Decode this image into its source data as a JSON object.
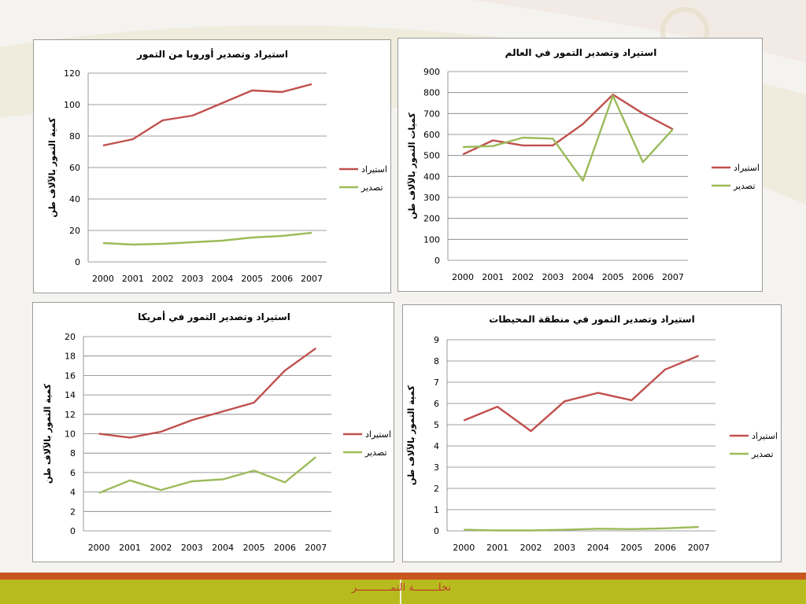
{
  "footer": {
    "text": "نخلــــــــة التمـــــــــــر"
  },
  "colors": {
    "import": "#c0504d",
    "export": "#9bbb59",
    "grid": "#7f7f7f",
    "footer_orange": "#c8561f",
    "footer_green": "#b8bb1e"
  },
  "chart_data": [
    {
      "type": "line",
      "title": "استيراد وتصدير أوروبا من التمور",
      "ylabel": "كمية التمور بالآلاف طن",
      "xlabel": "",
      "categories": [
        "2000",
        "2001",
        "2002",
        "2003",
        "2004",
        "2005",
        "2006",
        "2007"
      ],
      "ylim": [
        0,
        120
      ],
      "ystep": 20,
      "yticks": [
        "0",
        "20",
        "40",
        "60",
        "80",
        "100",
        "120"
      ],
      "grid": true,
      "legend": "right",
      "series": [
        {
          "name": "استيراد",
          "values": [
            74,
            78,
            90,
            93,
            101,
            109,
            108,
            113
          ]
        },
        {
          "name": "تصدير",
          "values": [
            12,
            11,
            11.5,
            12.5,
            13.5,
            15.5,
            16.5,
            18.5
          ]
        }
      ]
    },
    {
      "type": "line",
      "title": "استيراد وتصدير التمور في العالم",
      "ylabel": "كميات التمور بالآلاف طن",
      "xlabel": "",
      "categories": [
        "2000",
        "2001",
        "2002",
        "2003",
        "2004",
        "2005",
        "2006",
        "2007"
      ],
      "ylim": [
        0,
        900
      ],
      "ystep": 100,
      "yticks": [
        "0",
        "100",
        "200",
        "300",
        "400",
        "500",
        "600",
        "700",
        "800",
        "900"
      ],
      "grid": true,
      "legend": "right",
      "series": [
        {
          "name": "استيراد",
          "values": [
            505,
            572,
            548,
            548,
            650,
            790,
            700,
            625
          ]
        },
        {
          "name": "تصدير",
          "values": [
            540,
            545,
            585,
            580,
            380,
            785,
            468,
            625
          ]
        }
      ]
    },
    {
      "type": "line",
      "title": "استيراد وتصدير التمور في أمريكا",
      "ylabel": "كمية التمور بالآلاف طن",
      "xlabel": "",
      "categories": [
        "2000",
        "2001",
        "2002",
        "2003",
        "2004",
        "2005",
        "2006",
        "2007"
      ],
      "ylim": [
        0,
        20
      ],
      "ystep": 2,
      "yticks": [
        "0",
        "2",
        "4",
        "6",
        "8",
        "10",
        "12",
        "14",
        "16",
        "18",
        "20"
      ],
      "grid": true,
      "legend": "right",
      "series": [
        {
          "name": "استيراد",
          "values": [
            10,
            9.6,
            10.2,
            11.4,
            12.3,
            13.2,
            16.5,
            18.8
          ]
        },
        {
          "name": "تصدير",
          "values": [
            3.9,
            5.2,
            4.2,
            5.1,
            5.3,
            6.2,
            5.0,
            7.6
          ]
        }
      ]
    },
    {
      "type": "line",
      "title": "استيراد وتصدير التمور في منطقة المحيطات",
      "ylabel": "كمية التمور بالآلاف طن",
      "xlabel": "",
      "categories": [
        "2000",
        "2001",
        "2002",
        "2003",
        "2004",
        "2005",
        "2006",
        "2007"
      ],
      "ylim": [
        0,
        9
      ],
      "ystep": 1,
      "yticks": [
        "0",
        "1",
        "2",
        "3",
        "4",
        "5",
        "6",
        "7",
        "8",
        "9"
      ],
      "grid": true,
      "legend": "right",
      "series": [
        {
          "name": "استيراد",
          "values": [
            5.2,
            5.85,
            4.7,
            6.1,
            6.5,
            6.15,
            7.6,
            8.25
          ]
        },
        {
          "name": "تصدير",
          "values": [
            0.05,
            0.02,
            0.02,
            0.05,
            0.1,
            0.08,
            0.12,
            0.18
          ]
        }
      ]
    }
  ]
}
